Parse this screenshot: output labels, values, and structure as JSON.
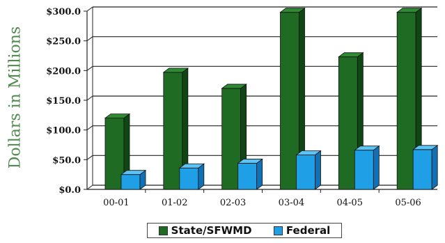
{
  "chart_data": {
    "type": "bar",
    "categories": [
      "00-01",
      "01-02",
      "02-03",
      "03-04",
      "04-05",
      "05-06"
    ],
    "series": [
      {
        "name": "State/SFWMD",
        "values": [
          120,
          197,
          170,
          298,
          223,
          298
        ]
      },
      {
        "name": "Federal",
        "values": [
          25,
          36,
          44,
          58,
          66,
          67
        ]
      }
    ],
    "yticks": [
      "$0.0",
      "$50.0",
      "$100.0",
      "$150.0",
      "$200.0",
      "$250.0",
      "$300.0"
    ],
    "ylim": [
      0,
      300
    ],
    "ylabel": "Dollars in Millions",
    "xlabel": "",
    "grid": true,
    "legend_position": "bottom",
    "colors": {
      "state_front": "#1f6b24",
      "state_side": "#0f4614",
      "state_top": "#2e8a33",
      "federal_front": "#1f9fe6",
      "federal_side": "#1270b4",
      "federal_top": "#5cc4f5",
      "axis_label": "#4e8a4e"
    }
  }
}
